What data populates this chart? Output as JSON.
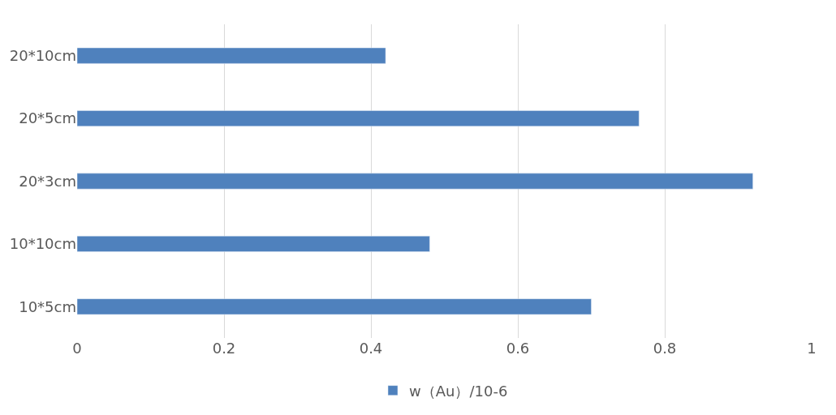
{
  "chart_data": {
    "type": "bar",
    "orientation": "horizontal",
    "categories": [
      "20*10cm",
      "20*5cm",
      "20*3cm",
      "10*10cm",
      "10*5cm"
    ],
    "series": [
      {
        "name": "w（Au）/10-6",
        "color": "#4f81bd",
        "values": [
          0.42,
          0.765,
          0.92,
          0.48,
          0.7
        ]
      }
    ],
    "xlim": [
      0,
      1
    ],
    "xticks": [
      0,
      0.2,
      0.4,
      0.6,
      0.8,
      1
    ],
    "grid": "x",
    "legend": "bottom"
  }
}
